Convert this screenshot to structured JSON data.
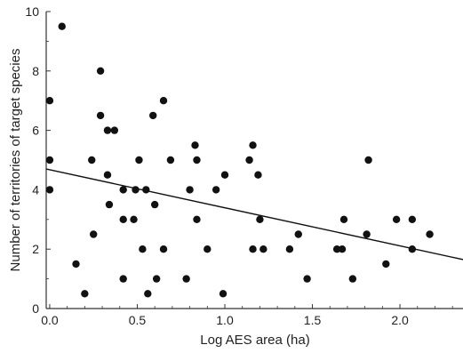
{
  "chart_data": {
    "type": "scatter",
    "title": "",
    "xlabel": "Log AES area (ha)",
    "ylabel": "Number of territories of target species",
    "xlim": [
      -0.02,
      2.36
    ],
    "ylim": [
      0,
      10
    ],
    "x_ticks": [
      0.0,
      0.5,
      1.0,
      1.5,
      2.0
    ],
    "x_tick_labels": [
      "0.0",
      "0.5",
      "1.0",
      "1.5",
      "2.0"
    ],
    "y_ticks": [
      0,
      2,
      4,
      6,
      8,
      10
    ],
    "y_tick_labels": [
      "0",
      "2",
      "4",
      "6",
      "8",
      "10"
    ],
    "grid": false,
    "legend": "none",
    "colors": {
      "points": "#111111",
      "line": "#111111",
      "axis": "#333333"
    },
    "points": [
      {
        "x": 0.0,
        "y": 7.0
      },
      {
        "x": 0.0,
        "y": 5.0
      },
      {
        "x": 0.0,
        "y": 4.0
      },
      {
        "x": 0.07,
        "y": 9.5
      },
      {
        "x": 0.15,
        "y": 1.5
      },
      {
        "x": 0.2,
        "y": 0.5
      },
      {
        "x": 0.24,
        "y": 5.0
      },
      {
        "x": 0.25,
        "y": 2.5
      },
      {
        "x": 0.29,
        "y": 8.0
      },
      {
        "x": 0.29,
        "y": 6.5
      },
      {
        "x": 0.33,
        "y": 6.0
      },
      {
        "x": 0.33,
        "y": 4.5
      },
      {
        "x": 0.34,
        "y": 3.5
      },
      {
        "x": 0.37,
        "y": 6.0
      },
      {
        "x": 0.42,
        "y": 4.0
      },
      {
        "x": 0.42,
        "y": 3.0
      },
      {
        "x": 0.42,
        "y": 1.0
      },
      {
        "x": 0.48,
        "y": 3.0
      },
      {
        "x": 0.49,
        "y": 4.0
      },
      {
        "x": 0.51,
        "y": 5.0
      },
      {
        "x": 0.53,
        "y": 2.0
      },
      {
        "x": 0.55,
        "y": 4.0
      },
      {
        "x": 0.56,
        "y": 0.5
      },
      {
        "x": 0.59,
        "y": 6.5
      },
      {
        "x": 0.6,
        "y": 3.5
      },
      {
        "x": 0.61,
        "y": 1.0
      },
      {
        "x": 0.65,
        "y": 7.0
      },
      {
        "x": 0.65,
        "y": 2.0
      },
      {
        "x": 0.69,
        "y": 5.0
      },
      {
        "x": 0.78,
        "y": 1.0
      },
      {
        "x": 0.8,
        "y": 4.0
      },
      {
        "x": 0.83,
        "y": 5.5
      },
      {
        "x": 0.84,
        "y": 5.0
      },
      {
        "x": 0.84,
        "y": 3.0
      },
      {
        "x": 0.9,
        "y": 2.0
      },
      {
        "x": 0.95,
        "y": 4.0
      },
      {
        "x": 0.99,
        "y": 0.5
      },
      {
        "x": 1.0,
        "y": 4.5
      },
      {
        "x": 1.14,
        "y": 5.0
      },
      {
        "x": 1.16,
        "y": 5.5
      },
      {
        "x": 1.16,
        "y": 2.0
      },
      {
        "x": 1.19,
        "y": 4.5
      },
      {
        "x": 1.2,
        "y": 3.0
      },
      {
        "x": 1.22,
        "y": 2.0
      },
      {
        "x": 1.37,
        "y": 2.0
      },
      {
        "x": 1.42,
        "y": 2.5
      },
      {
        "x": 1.47,
        "y": 1.0
      },
      {
        "x": 1.64,
        "y": 2.0
      },
      {
        "x": 1.67,
        "y": 2.0
      },
      {
        "x": 1.68,
        "y": 3.0
      },
      {
        "x": 1.73,
        "y": 1.0
      },
      {
        "x": 1.81,
        "y": 2.5
      },
      {
        "x": 1.82,
        "y": 5.0
      },
      {
        "x": 1.92,
        "y": 1.5
      },
      {
        "x": 1.98,
        "y": 3.0
      },
      {
        "x": 2.07,
        "y": 3.0
      },
      {
        "x": 2.07,
        "y": 2.0
      },
      {
        "x": 2.17,
        "y": 2.5
      }
    ],
    "trend_line": {
      "x": [
        -0.02,
        2.36
      ],
      "y": [
        4.7,
        1.65
      ]
    }
  }
}
